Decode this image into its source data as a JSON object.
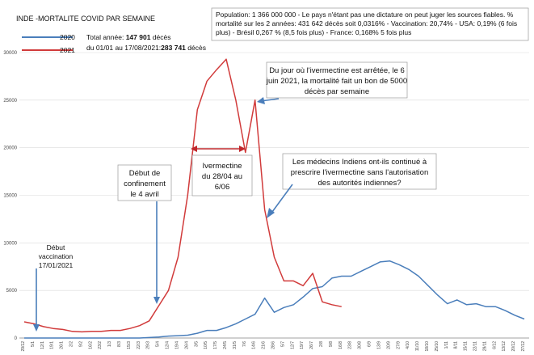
{
  "chart_data": {
    "type": "line",
    "title": "INDE -MORTALITE COVID PAR SEMAINE",
    "ylim": [
      0,
      30000
    ],
    "yticks": [
      0,
      5000,
      10000,
      15000,
      20000,
      25000,
      30000
    ],
    "x_labels": [
      "29/12",
      "5/1",
      "12/1",
      "19/1",
      "26/1",
      "2/2",
      "9/2",
      "16/2",
      "23/2",
      "1/3",
      "8/3",
      "15/3",
      "22/3",
      "29/3",
      "5/4",
      "12/4",
      "19/4",
      "26/4",
      "3/5",
      "10/5",
      "17/5",
      "24/5",
      "31/5",
      "7/6",
      "14/6",
      "21/6",
      "28/6",
      "5/7",
      "12/7",
      "19/7",
      "26/7",
      "2/8",
      "9/8",
      "16/8",
      "23/8",
      "30/8",
      "6/9",
      "13/9",
      "20/9",
      "27/9",
      "4/10",
      "11/10",
      "18/10",
      "25/10",
      "1/11",
      "8/11",
      "15/11",
      "22/11",
      "29/11",
      "6/12",
      "13/12",
      "20/12",
      "27/12"
    ],
    "series": [
      {
        "name": "2020",
        "color": "#4a7ebb",
        "values": [
          0,
          0,
          0,
          0,
          0,
          0,
          0,
          0,
          0,
          0,
          0,
          0,
          0,
          50,
          100,
          200,
          250,
          300,
          500,
          800,
          800,
          1100,
          1500,
          2000,
          2500,
          4200,
          2700,
          3200,
          3500,
          4300,
          5200,
          5400,
          6300,
          6500,
          6500,
          7000,
          7500,
          8000,
          8100,
          7700,
          7200,
          6500,
          5500,
          4500,
          3600,
          4000,
          3500,
          3600,
          3300,
          3300,
          2900,
          2400,
          2000
        ]
      },
      {
        "name": "2021",
        "color": "#d13b3b",
        "values": [
          1700,
          1500,
          1200,
          1000,
          900,
          700,
          650,
          700,
          700,
          800,
          800,
          1000,
          1300,
          1800,
          3400,
          5000,
          8500,
          15000,
          24000,
          27000,
          28200,
          29300,
          25000,
          19500,
          25000,
          13500,
          8500,
          6000,
          6000,
          5500,
          6800,
          3800,
          3500,
          3300
        ]
      }
    ],
    "legend": [
      {
        "label": "2020",
        "note_prefix": "Total année:",
        "note_value": "147 901",
        "note_suffix": "décès"
      },
      {
        "label": "2021",
        "note_prefix": "du 01/01 au 17/08/2021:",
        "note_value": "283 741",
        "note_suffix": "décès"
      }
    ],
    "info_box": [
      "Population:  1 366 000 000 - Le pays n'étant pas une dictature on peut juger les sources fiables. %",
      "mortalité sur les 2 années:  431 642 décès soit  0,0316% - Vaccination: 20,74% - USA: 0,19% (6 fois",
      "plus) - Brésil 0,267 % (8,5 fois plus) - France: 0,168% 5 fois plus"
    ],
    "annotations": {
      "vaccination": [
        "Début",
        "vaccination",
        "17/01/2021"
      ],
      "confinement": [
        "Début de",
        "confinement",
        "le 4 avril"
      ],
      "ivermectine": [
        "Ivermectine",
        "du 28/04 au",
        "6/06"
      ],
      "arret": [
        "Du jour où l'ivermectine est arrêtée, le 6",
        "juin 2021, la mortalité fait un bon de 5000",
        "décès par semaine"
      ],
      "medecins": [
        "Les médecins Indiens ont-ils continué à",
        "prescrire l'ivermectine sans l'autorisation",
        "des autorités indiennes?"
      ]
    }
  }
}
